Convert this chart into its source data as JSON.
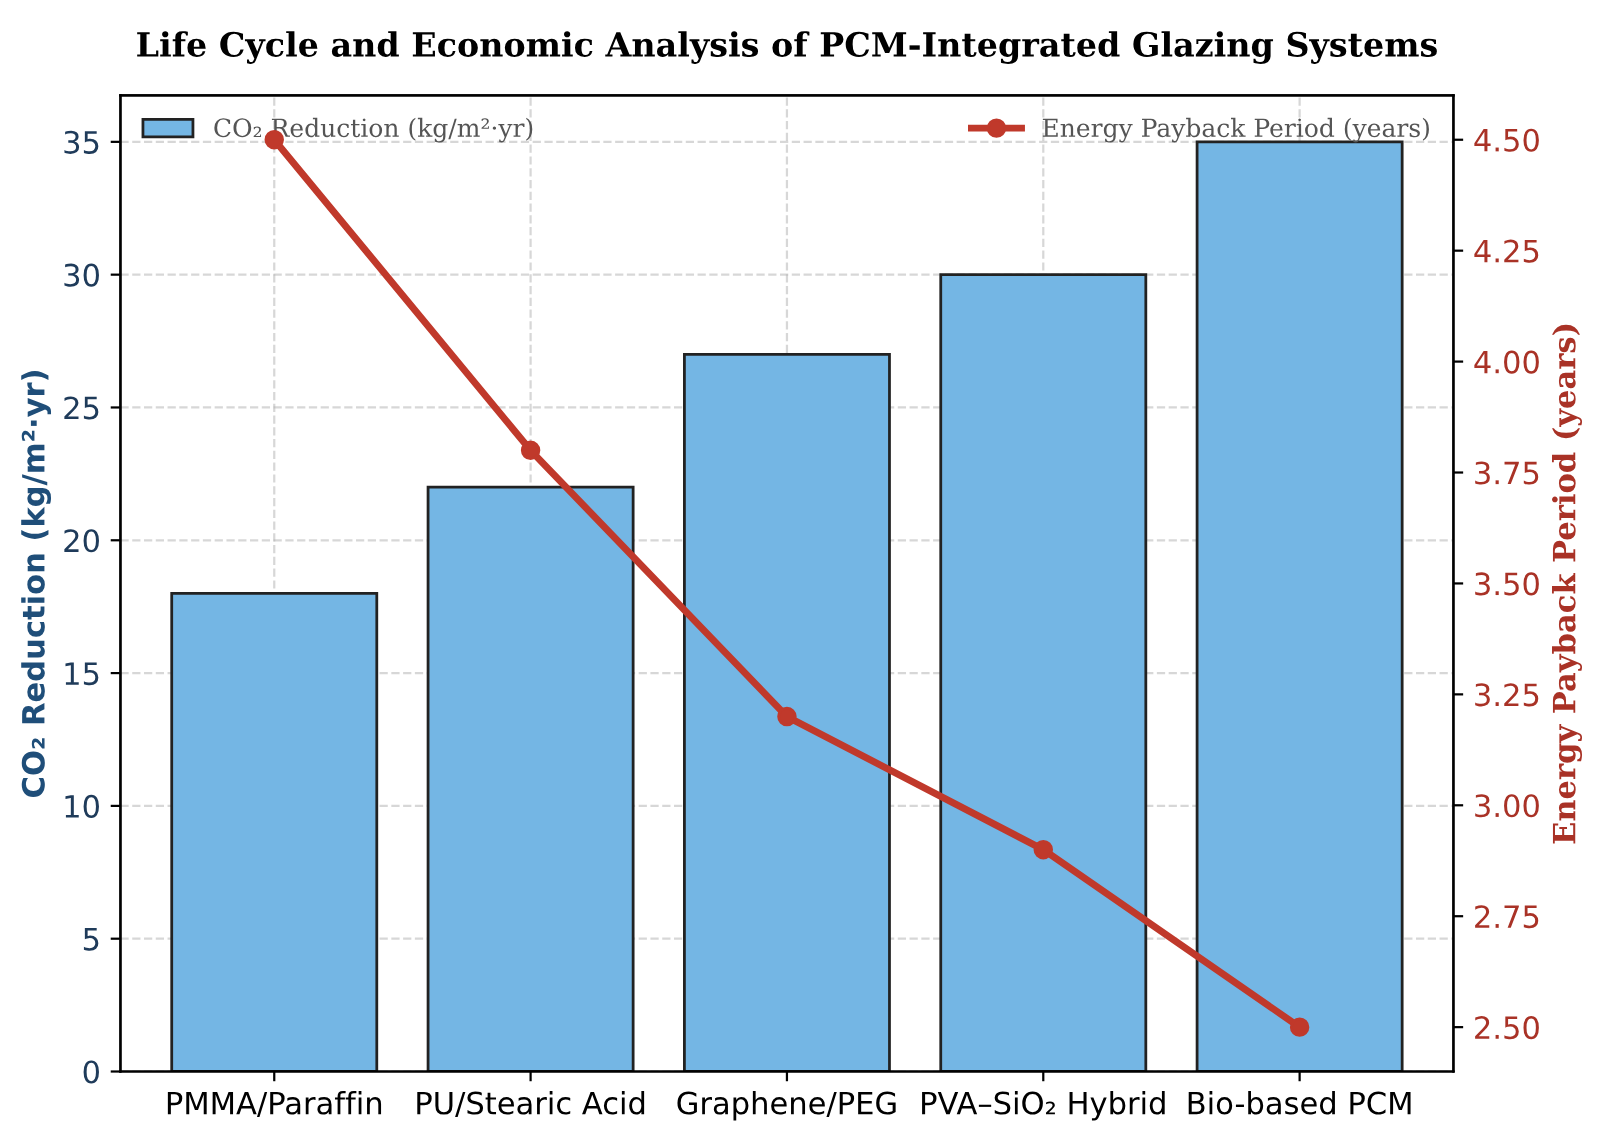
{
  "chart_data": {
    "type": "bar",
    "title": "Life Cycle and Economic Analysis of PCM-Integrated Glazing Systems",
    "categories": [
      "PMMA/Paraffin",
      "PU/Stearic Acid",
      "Graphene/PEG",
      "PVA–SiO₂ Hybrid",
      "Bio-based PCM"
    ],
    "ylabel": "CO₂ Reduction (kg/m²·yr)",
    "y2label": "Energy Payback Period (years)",
    "series": [
      {
        "name": "CO₂ Reduction (kg/m²·yr)",
        "color": "#74b6e4",
        "values": [
          18,
          22,
          27,
          30,
          35
        ]
      },
      {
        "name": "Energy Payback Period (years)",
        "type": "line",
        "axis": "y2",
        "color": "#c0392b",
        "values": [
          4.5,
          3.8,
          3.2,
          2.9,
          2.5
        ]
      }
    ],
    "ylim": [
      0,
      36.75
    ],
    "yticks": [
      0,
      5,
      10,
      15,
      20,
      25,
      30,
      35
    ],
    "y2lim": [
      2.4,
      4.6
    ],
    "y2ticks": [
      {
        "value": 2.5,
        "label": "2.50"
      },
      {
        "value": 2.75,
        "label": "2.75"
      },
      {
        "value": 3.0,
        "label": "3.00"
      },
      {
        "value": 3.25,
        "label": "3.25"
      },
      {
        "value": 3.5,
        "label": "3.50"
      },
      {
        "value": 3.75,
        "label": "3.75"
      },
      {
        "value": 4.0,
        "label": "4.00"
      },
      {
        "value": 4.25,
        "label": "4.25"
      },
      {
        "value": 4.5,
        "label": "4.50"
      }
    ],
    "grid": true,
    "legend": "top",
    "marker": "circle",
    "line_style": "solid"
  }
}
